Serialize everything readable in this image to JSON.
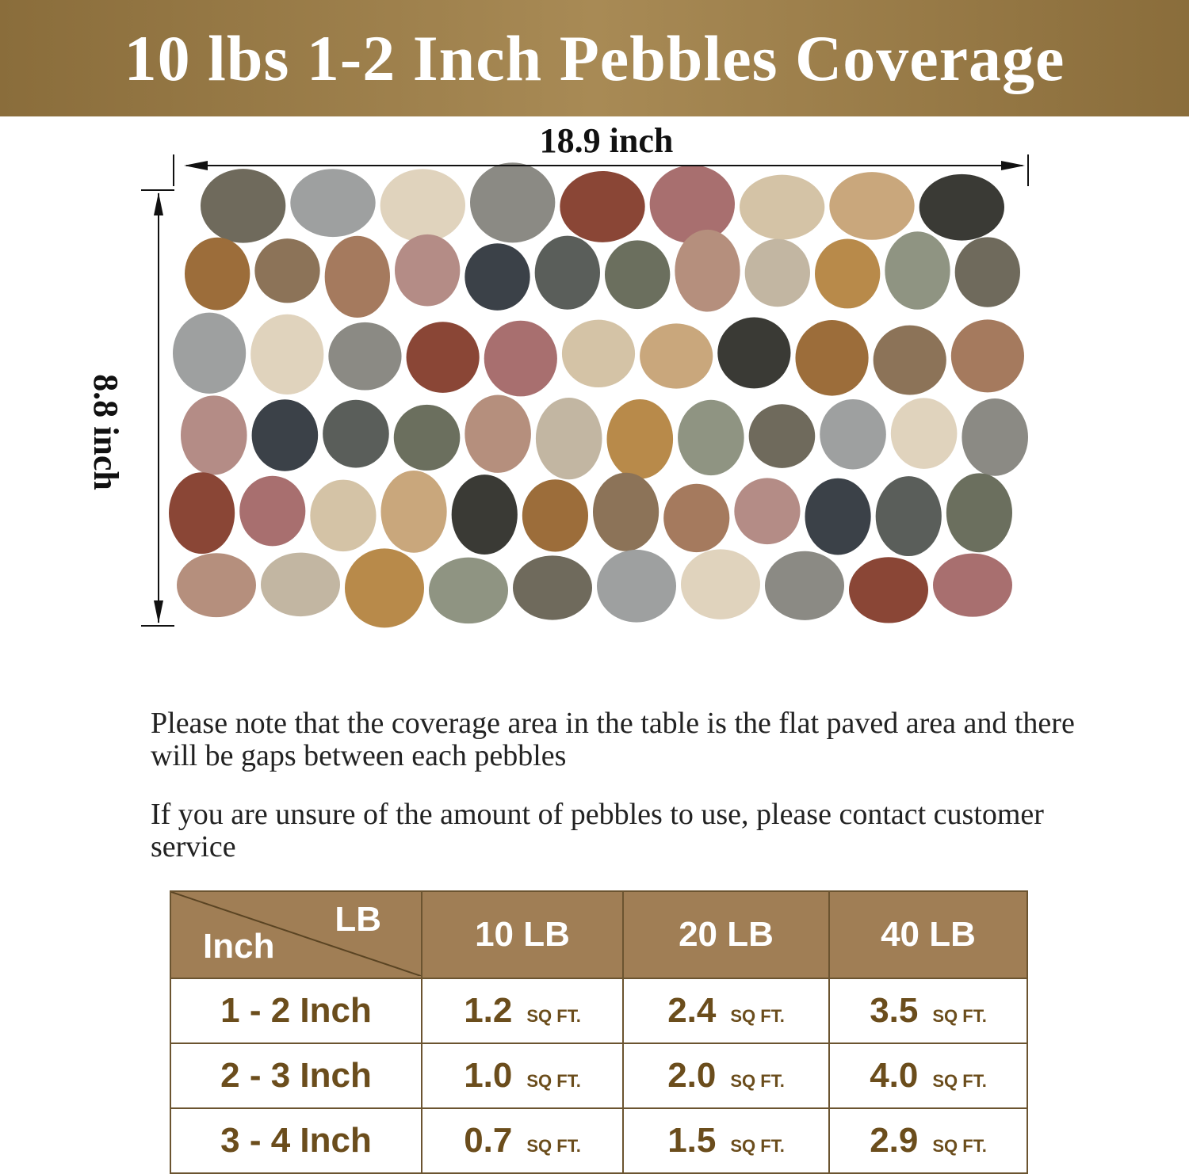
{
  "title": "10 lbs 1-2 Inch Pebbles Coverage",
  "width_label": "18.9 inch",
  "height_label": "8.8 inch",
  "notes": [
    "Please note that the coverage area in the table is the flat paved area and there will be gaps between each pebbles",
    "If you are unsure of the amount of pebbles to use, please contact customer service"
  ],
  "table": {
    "corner_row": "Inch",
    "corner_col": "LB",
    "headers": [
      "10 LB",
      "20 LB",
      "40 LB"
    ],
    "unit": "SQ FT.",
    "rows": [
      {
        "size": "1 - 2 Inch",
        "values": [
          "1.2",
          "2.4",
          "3.5"
        ]
      },
      {
        "size": "2 - 3 Inch",
        "values": [
          "1.0",
          "2.0",
          "4.0"
        ]
      },
      {
        "size": "3 - 4 Inch",
        "values": [
          "0.7",
          "1.5",
          "2.9"
        ]
      }
    ]
  },
  "colors": {
    "banner": "#a88a55",
    "table_header": "#a07e55",
    "table_text": "#6b4d1c"
  }
}
